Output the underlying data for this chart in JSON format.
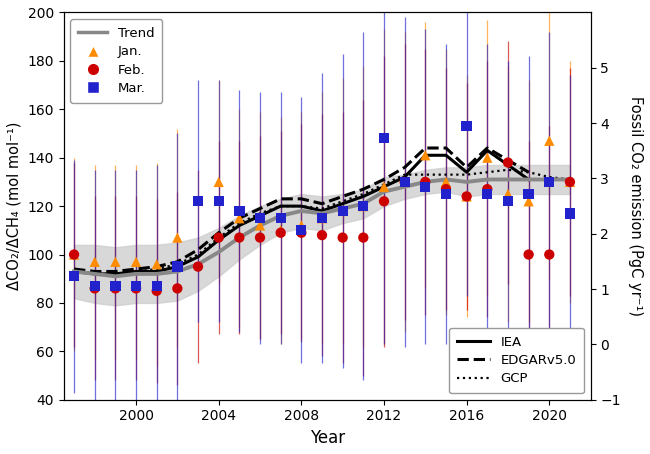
{
  "xlabel": "Year",
  "ylabel_left": "ΔCO₂/ΔCH₄ (mol mol⁻¹)",
  "ylabel_right": "Fossil CO₂ emission (PgC yr⁻¹)",
  "xlim": [
    1996.5,
    2022
  ],
  "ylim_left": [
    40,
    200
  ],
  "ylim_right": [
    -1,
    6
  ],
  "xticks": [
    2000,
    2004,
    2008,
    2012,
    2016,
    2020
  ],
  "yticks_left": [
    40,
    60,
    80,
    100,
    120,
    140,
    160,
    180,
    200
  ],
  "yticks_right": [
    -1,
    0,
    1,
    2,
    3,
    4,
    5
  ],
  "jan_x": [
    1997,
    1998,
    1999,
    2000,
    2001,
    2002,
    2004,
    2005,
    2006,
    2007,
    2008,
    2009,
    2010,
    2011,
    2012,
    2013,
    2014,
    2015,
    2016,
    2017,
    2018,
    2019,
    2020,
    2021
  ],
  "jan_y": [
    100,
    97,
    97,
    97,
    96,
    107,
    130,
    115,
    112,
    110,
    112,
    115,
    118,
    120,
    128,
    130,
    141,
    130,
    124,
    140,
    125,
    122,
    147,
    130
  ],
  "jan_yerr": [
    40,
    40,
    40,
    40,
    42,
    45,
    42,
    45,
    47,
    47,
    47,
    52,
    55,
    58,
    65,
    62,
    55,
    55,
    50,
    57,
    53,
    50,
    57,
    50
  ],
  "feb_x": [
    1997,
    1998,
    1999,
    2000,
    2001,
    2002,
    2003,
    2004,
    2005,
    2006,
    2007,
    2008,
    2009,
    2010,
    2011,
    2012,
    2013,
    2014,
    2015,
    2016,
    2017,
    2018,
    2019,
    2020,
    2021
  ],
  "feb_y": [
    100,
    86,
    86,
    86,
    85,
    86,
    95,
    107,
    107,
    107,
    109,
    109,
    108,
    107,
    107,
    122,
    130,
    130,
    127,
    124,
    127,
    138,
    100,
    100,
    130
  ],
  "feb_yerr": [
    38,
    38,
    38,
    38,
    38,
    40,
    40,
    40,
    40,
    42,
    42,
    45,
    50,
    52,
    57,
    60,
    57,
    55,
    50,
    47,
    53,
    50,
    47,
    53,
    47
  ],
  "mar_x": [
    1997,
    1998,
    1999,
    2000,
    2001,
    2002,
    2003,
    2004,
    2005,
    2006,
    2007,
    2008,
    2009,
    2010,
    2011,
    2012,
    2013,
    2014,
    2015,
    2016,
    2017,
    2018,
    2019,
    2020,
    2021
  ],
  "mar_y": [
    91,
    87,
    87,
    87,
    87,
    95,
    122,
    122,
    118,
    115,
    115,
    110,
    115,
    118,
    120,
    148,
    130,
    128,
    125,
    153,
    125,
    122,
    125,
    130,
    117
  ],
  "mar_yerr": [
    48,
    48,
    48,
    48,
    50,
    55,
    50,
    50,
    50,
    52,
    52,
    55,
    60,
    65,
    72,
    85,
    68,
    65,
    62,
    70,
    62,
    58,
    57,
    62,
    57
  ],
  "trend_x": [
    1997,
    1998,
    1999,
    2000,
    2001,
    2002,
    2003,
    2004,
    2005,
    2006,
    2007,
    2008,
    2009,
    2010,
    2011,
    2012,
    2013,
    2014,
    2015,
    2016,
    2017,
    2018,
    2019,
    2020,
    2021
  ],
  "trend_y": [
    93,
    92,
    91,
    92,
    92,
    93,
    96,
    101,
    107,
    112,
    116,
    118,
    117,
    119,
    121,
    126,
    128,
    130,
    131,
    130,
    131,
    131,
    131,
    131,
    131
  ],
  "trend_lo": [
    82,
    80,
    79,
    80,
    80,
    81,
    85,
    91,
    98,
    104,
    109,
    111,
    110,
    113,
    115,
    120,
    123,
    125,
    126,
    124,
    125,
    125,
    125,
    125,
    125
  ],
  "trend_hi": [
    104,
    104,
    103,
    104,
    104,
    105,
    107,
    111,
    116,
    120,
    123,
    125,
    124,
    125,
    127,
    132,
    133,
    135,
    136,
    136,
    137,
    137,
    137,
    137,
    137
  ],
  "iea_x": [
    1997,
    1998,
    1999,
    2000,
    2001,
    2002,
    2003,
    2004,
    2005,
    2006,
    2007,
    2008,
    2009,
    2010,
    2011,
    2012,
    2013,
    2014,
    2015,
    2016,
    2017,
    2018,
    2019
  ],
  "iea_y": [
    93,
    92,
    92,
    93,
    93,
    95,
    99,
    106,
    112,
    116,
    120,
    120,
    118,
    121,
    124,
    128,
    132,
    141,
    141,
    134,
    143,
    137,
    131
  ],
  "edgar_x": [
    1997,
    1998,
    1999,
    2000,
    2001,
    2002,
    2003,
    2004,
    2005,
    2006,
    2007,
    2008,
    2009,
    2010,
    2011,
    2012,
    2013,
    2014,
    2015,
    2016,
    2017,
    2018,
    2019
  ],
  "edgar_y": [
    94,
    93,
    93,
    94,
    95,
    97,
    102,
    109,
    115,
    119,
    123,
    123,
    121,
    124,
    127,
    131,
    136,
    144,
    144,
    136,
    144,
    139,
    134
  ],
  "gcp_x": [
    1997,
    1998,
    1999,
    2000,
    2001,
    2002,
    2003,
    2004,
    2005,
    2006,
    2007,
    2008,
    2009,
    2010,
    2011,
    2012,
    2013,
    2014,
    2015,
    2016,
    2017,
    2018,
    2019,
    2020,
    2021
  ],
  "gcp_y": [
    93,
    92,
    92,
    93,
    94,
    96,
    100,
    107,
    113,
    117,
    120,
    120,
    119,
    122,
    125,
    129,
    133,
    133,
    133,
    133,
    134,
    135,
    134,
    132,
    131
  ],
  "color_jan": "#FF8C00",
  "color_feb": "#CC0000",
  "color_mar": "#2222CC",
  "color_trend": "#888888",
  "color_band": "#CCCCCC",
  "bg_color": "#FFFFFF"
}
